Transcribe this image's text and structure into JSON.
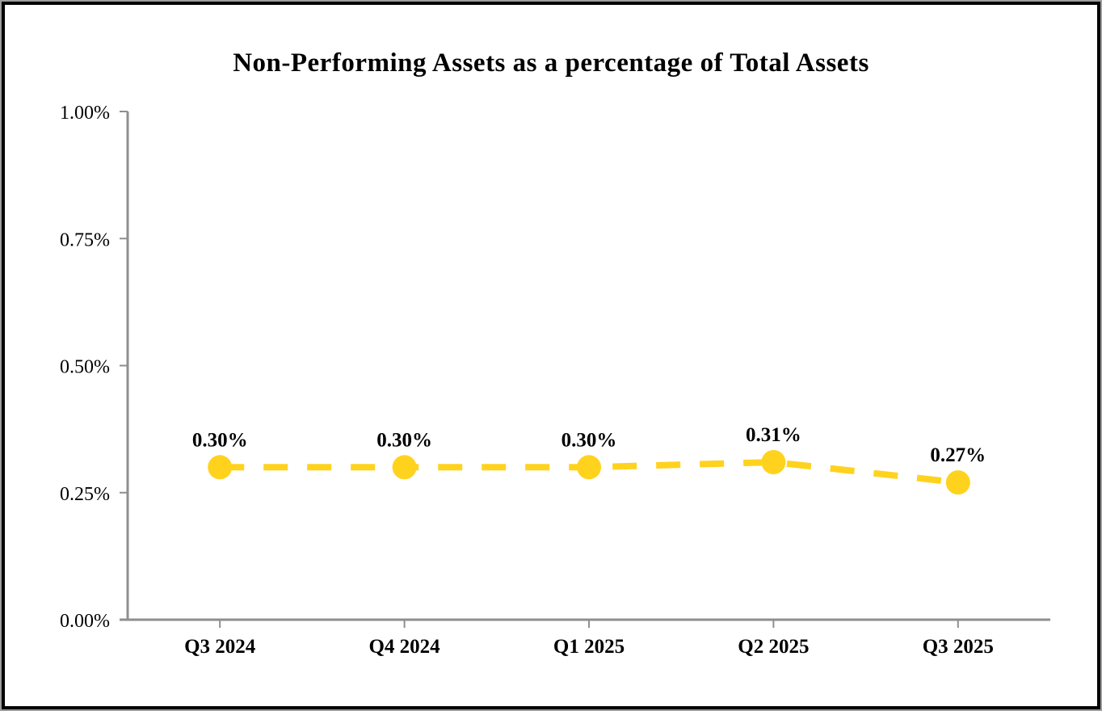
{
  "chart_data": {
    "type": "line",
    "title": "Non-Performing Assets as a percentage of Total Assets",
    "categories": [
      "Q3 2024",
      "Q4 2024",
      "Q1 2025",
      "Q2 2025",
      "Q3 2025"
    ],
    "series": [
      {
        "name": "Non-Performing Assets as a percentage of Total Assets",
        "values": [
          0.3,
          0.3,
          0.3,
          0.31,
          0.27
        ],
        "point_labels": [
          "0.30%",
          "0.30%",
          "0.30%",
          "0.31%",
          "0.27%"
        ]
      }
    ],
    "xlabel": "",
    "ylabel": "",
    "ylim": [
      0.0,
      1.0
    ],
    "yticks": [
      {
        "value": 0.0,
        "label": "0.00%"
      },
      {
        "value": 0.25,
        "label": "0.25%"
      },
      {
        "value": 0.5,
        "label": "0.50%"
      },
      {
        "value": 0.75,
        "label": "0.75%"
      },
      {
        "value": 1.0,
        "label": "1.00%"
      }
    ],
    "grid": false,
    "legend_position": "none",
    "line_style": "dashed",
    "marker": "circle",
    "colors": {
      "line": "#FFD21E",
      "axis": "#8f8f8f",
      "text": "#000000",
      "background": "#FFFFFF",
      "frame_border": "#000000",
      "frame_outer_edge": "#9e9e9e"
    }
  }
}
